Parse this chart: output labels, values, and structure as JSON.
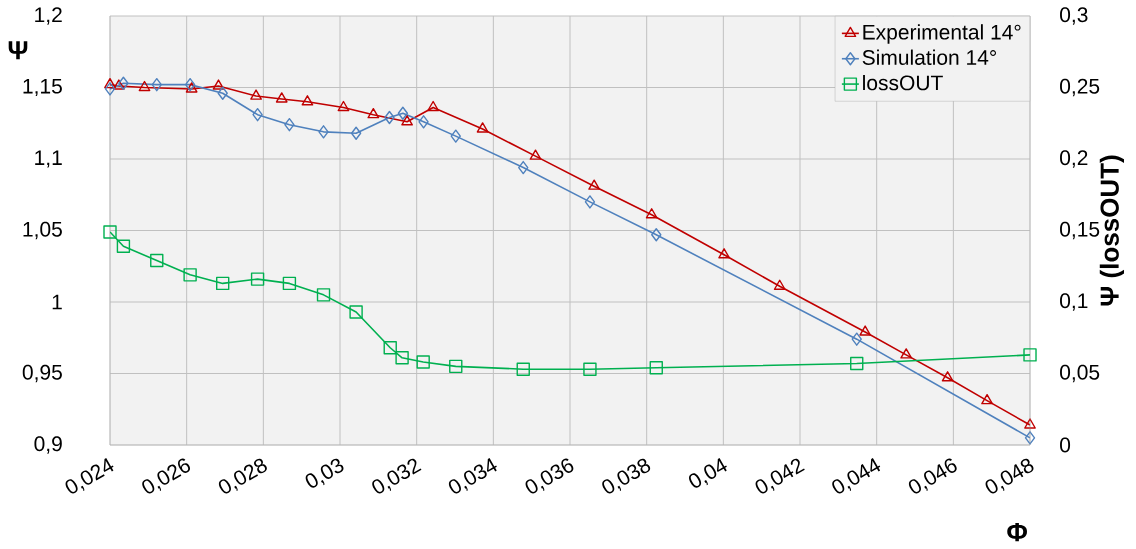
{
  "chart_data": {
    "type": "line",
    "xlabel": "Φ",
    "ylabel": "Ψ",
    "y2label": "Ψ (lossOUT)",
    "xlim": [
      0.024,
      0.048
    ],
    "xticks": [
      {
        "value": 0.024,
        "label": "0,024"
      },
      {
        "value": 0.026,
        "label": "0,026"
      },
      {
        "value": 0.028,
        "label": "0,028"
      },
      {
        "value": 0.03,
        "label": "0,03"
      },
      {
        "value": 0.032,
        "label": "0,032"
      },
      {
        "value": 0.034,
        "label": "0,034"
      },
      {
        "value": 0.036,
        "label": "0,036"
      },
      {
        "value": 0.038,
        "label": "0,038"
      },
      {
        "value": 0.04,
        "label": "0,04"
      },
      {
        "value": 0.042,
        "label": "0,042"
      },
      {
        "value": 0.044,
        "label": "0,044"
      },
      {
        "value": 0.046,
        "label": "0,046"
      },
      {
        "value": 0.048,
        "label": "0,048"
      }
    ],
    "ylim": [
      0.9,
      1.2
    ],
    "yticks": [
      {
        "value": 0.9,
        "label": "0,9"
      },
      {
        "value": 0.95,
        "label": "0,95"
      },
      1,
      {
        "value": 1.05,
        "label": "1,05"
      },
      {
        "value": 1.1,
        "label": "1,1"
      },
      {
        "value": 1.15,
        "label": "1,15"
      },
      {
        "value": 1.2,
        "label": "1,2"
      }
    ],
    "y2lim": [
      0,
      0.3
    ],
    "y2ticks": [
      0,
      {
        "value": 0.05,
        "label": "0,05"
      },
      {
        "value": 0.1,
        "label": "0,1"
      },
      {
        "value": 0.15,
        "label": "0,15"
      },
      {
        "value": 0.2,
        "label": "0,2"
      },
      {
        "value": 0.25,
        "label": "0,25"
      },
      {
        "value": 0.3,
        "label": "0,3"
      }
    ],
    "grid": true,
    "legend": "top right",
    "line_style": "solid",
    "series": [
      {
        "name": "Experimental 14°",
        "color": "#c00000",
        "marker": "triangle",
        "x": [
          0.024,
          0.02423,
          0.0249,
          0.02613,
          0.02683,
          0.02781,
          0.02848,
          0.02915,
          0.03009,
          0.03087,
          0.03175,
          0.03243,
          0.03372,
          0.0351,
          0.03663,
          0.03813,
          0.04002,
          0.04147,
          0.0437,
          0.04477,
          0.04585,
          0.04688,
          0.048
        ],
        "values": [
          1.152,
          1.151,
          1.15,
          1.149,
          1.151,
          1.144,
          1.142,
          1.14,
          1.136,
          1.131,
          1.126,
          1.136,
          1.121,
          1.102,
          1.081,
          1.061,
          1.033,
          1.011,
          0.979,
          0.963,
          0.947,
          0.931,
          0.914
        ]
      },
      {
        "name": "Simulation 14°",
        "color": "#4f81bd",
        "marker": "diamond",
        "x": [
          0.024,
          0.02435,
          0.02522,
          0.02609,
          0.02694,
          0.02785,
          0.02868,
          0.02957,
          0.03042,
          0.03129,
          0.03164,
          0.03218,
          0.03302,
          0.03478,
          0.03652,
          0.03825,
          0.04348,
          0.048
        ],
        "values": [
          1.149,
          1.153,
          1.152,
          1.152,
          1.146,
          1.131,
          1.124,
          1.119,
          1.118,
          1.129,
          1.132,
          1.126,
          1.116,
          1.094,
          1.07,
          1.047,
          0.974,
          0.905
        ]
      },
      {
        "name": "lossOUT",
        "color": "#00b050",
        "marker": "square",
        "axis": "y2",
        "x": [
          0.024,
          0.02435,
          0.02522,
          0.02609,
          0.02694,
          0.02785,
          0.02868,
          0.02957,
          0.03042,
          0.03131,
          0.03162,
          0.03217,
          0.03302,
          0.03478,
          0.03652,
          0.03825,
          0.04348,
          0.048
        ],
        "values": [
          0.149,
          0.139,
          0.129,
          0.119,
          0.113,
          0.116,
          0.113,
          0.105,
          0.093,
          0.068,
          0.061,
          0.058,
          0.055,
          0.053,
          0.053,
          0.054,
          0.057,
          0.063
        ]
      }
    ]
  }
}
